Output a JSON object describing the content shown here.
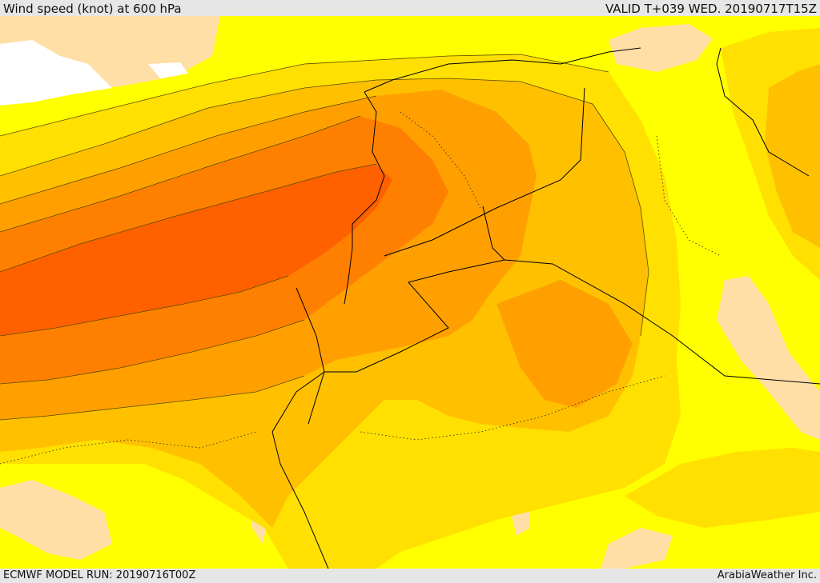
{
  "header": {
    "title": "Wind speed (knot) at 600 hPa",
    "valid": "VALID T+039 WED. 20190717T15Z"
  },
  "footer": {
    "model_run": "ECMWF MODEL RUN: 20190716T00Z",
    "credit": "ArabiaWeather Inc."
  },
  "colors": {
    "band_lowest": "#ffdfa6",
    "band_1": "#ffff00",
    "band_2": "#ffe000",
    "band_3": "#ffc000",
    "band_4": "#ffa000",
    "band_5": "#ff8000",
    "band_6": "#ff6000",
    "band_7": "#ff4000",
    "land_no_data": "#ffffff",
    "contour": "#5a4a00",
    "border": "#000000"
  }
}
